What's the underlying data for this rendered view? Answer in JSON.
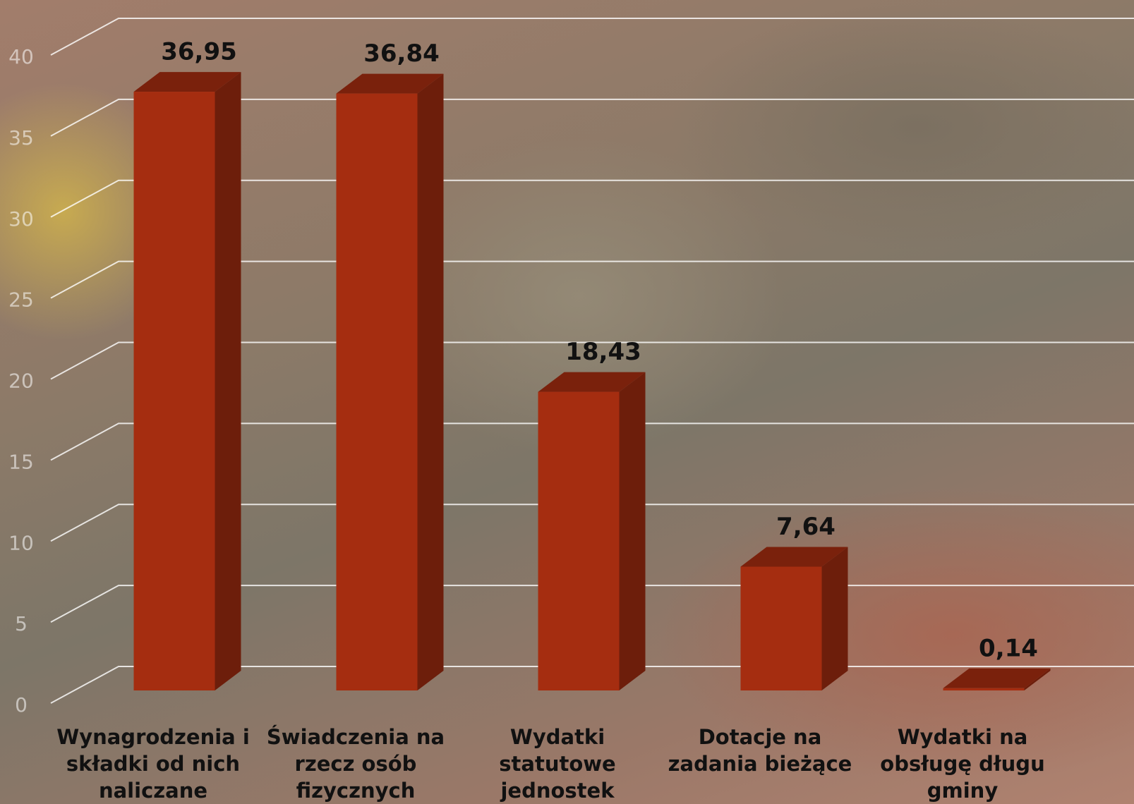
{
  "chart_data": {
    "type": "bar3d",
    "categories": [
      "Wynagrodzenia i składki od nich naliczane",
      "Świadczenia na rzecz osób fizycznych",
      "Wydatki statutowe jednostek",
      "Dotacje na zadania bieżące",
      "Wydatki na obsługę długu gminy"
    ],
    "values": [
      36.95,
      36.84,
      18.43,
      7.64,
      0.14
    ],
    "value_labels": [
      "36,95",
      "36,84",
      "18,43",
      "7,64",
      "0,14"
    ],
    "color": "#a52d10",
    "ylim": [
      0,
      40
    ],
    "yticks": [
      0,
      5,
      10,
      15,
      20,
      25,
      30,
      35,
      40
    ],
    "grid": true
  }
}
